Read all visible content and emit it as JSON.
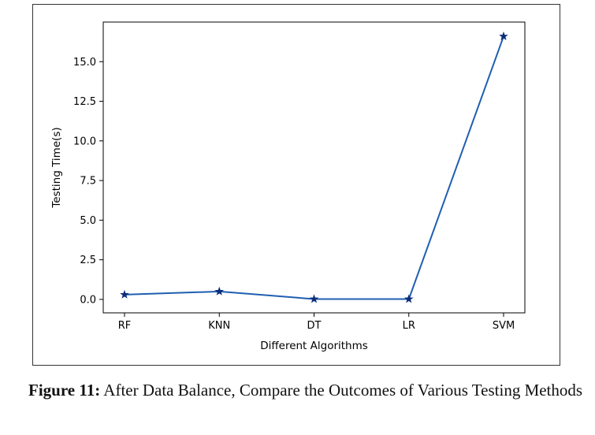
{
  "figure": {
    "caption_label": "Figure 11:",
    "caption_text": " After Data Balance, Compare the Outcomes of Various Testing Methods"
  },
  "chart_data": {
    "type": "line",
    "categories": [
      "RF",
      "KNN",
      "DT",
      "LR",
      "SVM"
    ],
    "series": [
      {
        "values": [
          0.3,
          0.5,
          0.02,
          0.02,
          16.6
        ],
        "color": "#1f5fb0",
        "marker": "star"
      }
    ],
    "xlabel": "Different Algorithms",
    "ylabel": "Testing Time(s)",
    "yticks": [
      "0.0",
      "2.5",
      "5.0",
      "7.5",
      "10.0",
      "12.5",
      "15.0"
    ],
    "ylim": [
      -0.85,
      17.5
    ],
    "grid": false
  }
}
